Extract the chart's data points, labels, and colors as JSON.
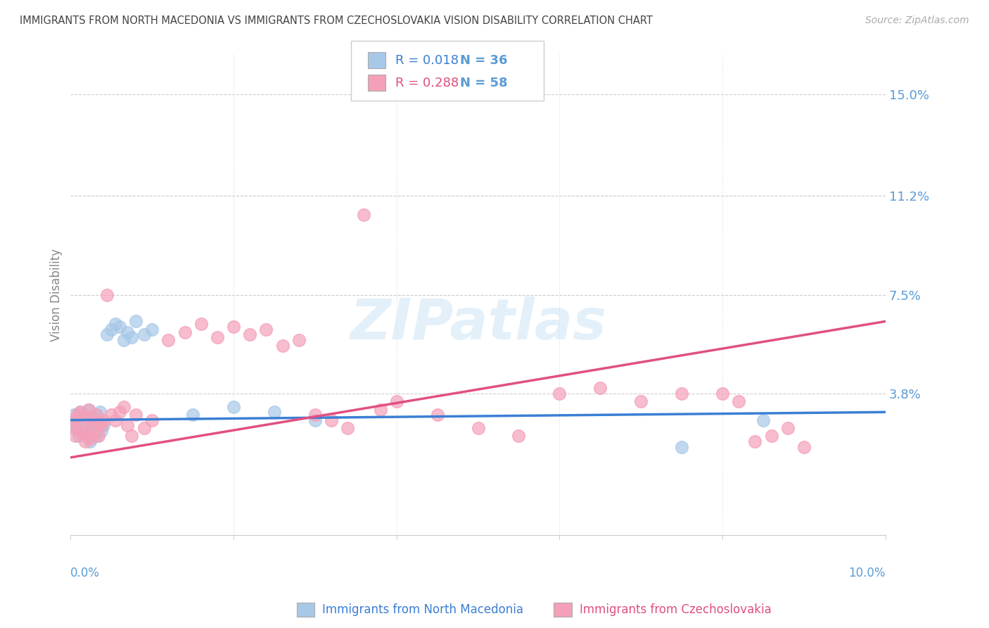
{
  "title": "IMMIGRANTS FROM NORTH MACEDONIA VS IMMIGRANTS FROM CZECHOSLOVAKIA VISION DISABILITY CORRELATION CHART",
  "source": "Source: ZipAtlas.com",
  "ylabel": "Vision Disability",
  "yticks": [
    0.038,
    0.075,
    0.112,
    0.15
  ],
  "ytick_labels": [
    "3.8%",
    "7.5%",
    "11.2%",
    "15.0%"
  ],
  "xlim": [
    0.0,
    0.1
  ],
  "ylim": [
    -0.015,
    0.165
  ],
  "watermark": "ZIPatlas",
  "color_blue": "#a8c8e8",
  "color_pink": "#f4a0b8",
  "color_blue_line": "#3b7fd4",
  "color_pink_line": "#e05080",
  "color_ytick": "#5b9bd5",
  "color_xtick": "#5b9bd5",
  "blue_scatter_x": [
    0.0002,
    0.0004,
    0.0006,
    0.0008,
    0.001,
    0.0012,
    0.0014,
    0.0016,
    0.0018,
    0.002,
    0.0022,
    0.0024,
    0.0026,
    0.0028,
    0.003,
    0.0032,
    0.0034,
    0.0036,
    0.0038,
    0.004,
    0.0045,
    0.005,
    0.0055,
    0.006,
    0.0065,
    0.007,
    0.0075,
    0.008,
    0.009,
    0.01,
    0.015,
    0.02,
    0.025,
    0.03,
    0.075,
    0.085
  ],
  "blue_scatter_y": [
    0.027,
    0.03,
    0.025,
    0.028,
    0.022,
    0.031,
    0.024,
    0.026,
    0.023,
    0.029,
    0.032,
    0.02,
    0.027,
    0.025,
    0.03,
    0.022,
    0.028,
    0.031,
    0.024,
    0.026,
    0.06,
    0.062,
    0.064,
    0.063,
    0.058,
    0.061,
    0.059,
    0.065,
    0.06,
    0.062,
    0.03,
    0.033,
    0.031,
    0.028,
    0.018,
    0.028
  ],
  "pink_scatter_x": [
    0.0002,
    0.0004,
    0.0006,
    0.0008,
    0.001,
    0.0012,
    0.0014,
    0.0016,
    0.0018,
    0.002,
    0.0022,
    0.0024,
    0.0026,
    0.0028,
    0.003,
    0.0032,
    0.0034,
    0.0036,
    0.0038,
    0.004,
    0.0045,
    0.005,
    0.0055,
    0.006,
    0.0065,
    0.007,
    0.0075,
    0.008,
    0.009,
    0.01,
    0.012,
    0.014,
    0.016,
    0.018,
    0.02,
    0.022,
    0.024,
    0.026,
    0.028,
    0.03,
    0.032,
    0.034,
    0.036,
    0.038,
    0.04,
    0.045,
    0.05,
    0.055,
    0.06,
    0.065,
    0.07,
    0.075,
    0.08,
    0.082,
    0.084,
    0.086,
    0.088,
    0.09
  ],
  "pink_scatter_y": [
    0.026,
    0.028,
    0.022,
    0.03,
    0.024,
    0.031,
    0.023,
    0.027,
    0.02,
    0.029,
    0.032,
    0.021,
    0.025,
    0.023,
    0.028,
    0.03,
    0.022,
    0.027,
    0.026,
    0.028,
    0.075,
    0.03,
    0.028,
    0.031,
    0.033,
    0.026,
    0.022,
    0.03,
    0.025,
    0.028,
    0.058,
    0.061,
    0.064,
    0.059,
    0.063,
    0.06,
    0.062,
    0.056,
    0.058,
    0.03,
    0.028,
    0.025,
    0.105,
    0.032,
    0.035,
    0.03,
    0.025,
    0.022,
    0.038,
    0.04,
    0.035,
    0.038,
    0.038,
    0.035,
    0.02,
    0.022,
    0.025,
    0.018
  ],
  "blue_line_x": [
    0.0,
    0.1
  ],
  "blue_line_y": [
    0.028,
    0.031
  ],
  "pink_line_x": [
    0.0,
    0.1
  ],
  "pink_line_y": [
    0.014,
    0.065
  ]
}
